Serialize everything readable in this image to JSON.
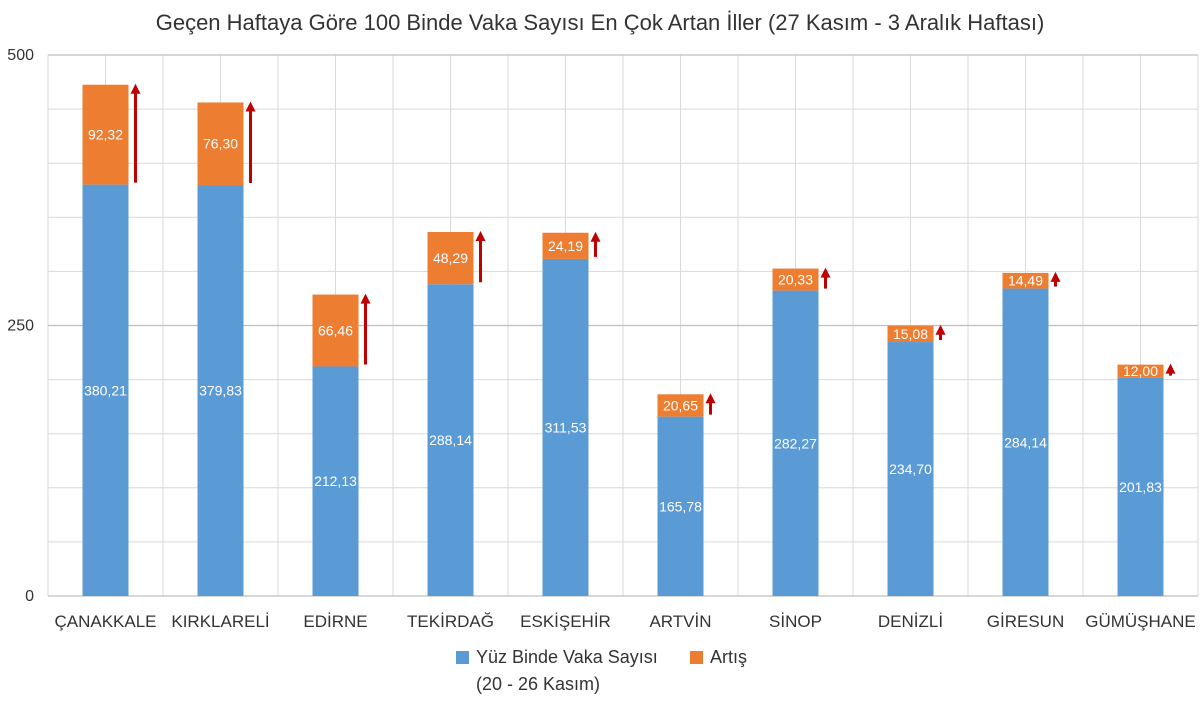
{
  "chart_data": {
    "type": "bar",
    "stacked": true,
    "title": "Geçen Haftaya Göre 100 Binde Vaka Sayısı En Çok Artan İller (27 Kasım - 3 Aralık Haftası)",
    "xlabel": "",
    "ylabel": "",
    "ylim": [
      0,
      500
    ],
    "yticks": [
      "0",
      "250",
      "500"
    ],
    "grid": true,
    "legend_position": "bottom",
    "categories": [
      "ÇANAKKALE",
      "KIRKLARELİ",
      "EDİRNE",
      "TEKİRDAĞ",
      "ESKİŞEHİR",
      "ARTVİN",
      "SİNOP",
      "DENİZLİ",
      "GİRESUN",
      "GÜMÜŞHANE"
    ],
    "series": [
      {
        "name": "Yüz Binde Vaka Sayısı (20 - 26 Kasım)",
        "legend_lines": [
          "Yüz Binde Vaka Sayısı",
          "(20 - 26 Kasım)"
        ],
        "color": "#5B9BD5",
        "values": [
          380.21,
          379.83,
          212.13,
          288.14,
          311.53,
          165.78,
          282.27,
          234.7,
          284.14,
          201.83
        ],
        "labels": [
          "380,21",
          "379,83",
          "212,13",
          "288,14",
          "311,53",
          "165,78",
          "282,27",
          "234,70",
          "284,14",
          "201,83"
        ]
      },
      {
        "name": "Artış",
        "legend_lines": [
          "Artış"
        ],
        "color": "#ED7D31",
        "values": [
          92.32,
          76.3,
          66.46,
          48.29,
          24.19,
          20.65,
          20.33,
          15.08,
          14.49,
          12.0
        ],
        "labels": [
          "92,32",
          "76,30",
          "66,46",
          "48,29",
          "24,19",
          "20,65",
          "20,33",
          "15,08",
          "14,49",
          "12,00"
        ]
      }
    ],
    "arrow_color": "#C00000",
    "grid_color": "#D9D9D9",
    "axis_color": "#BFBFBF"
  }
}
